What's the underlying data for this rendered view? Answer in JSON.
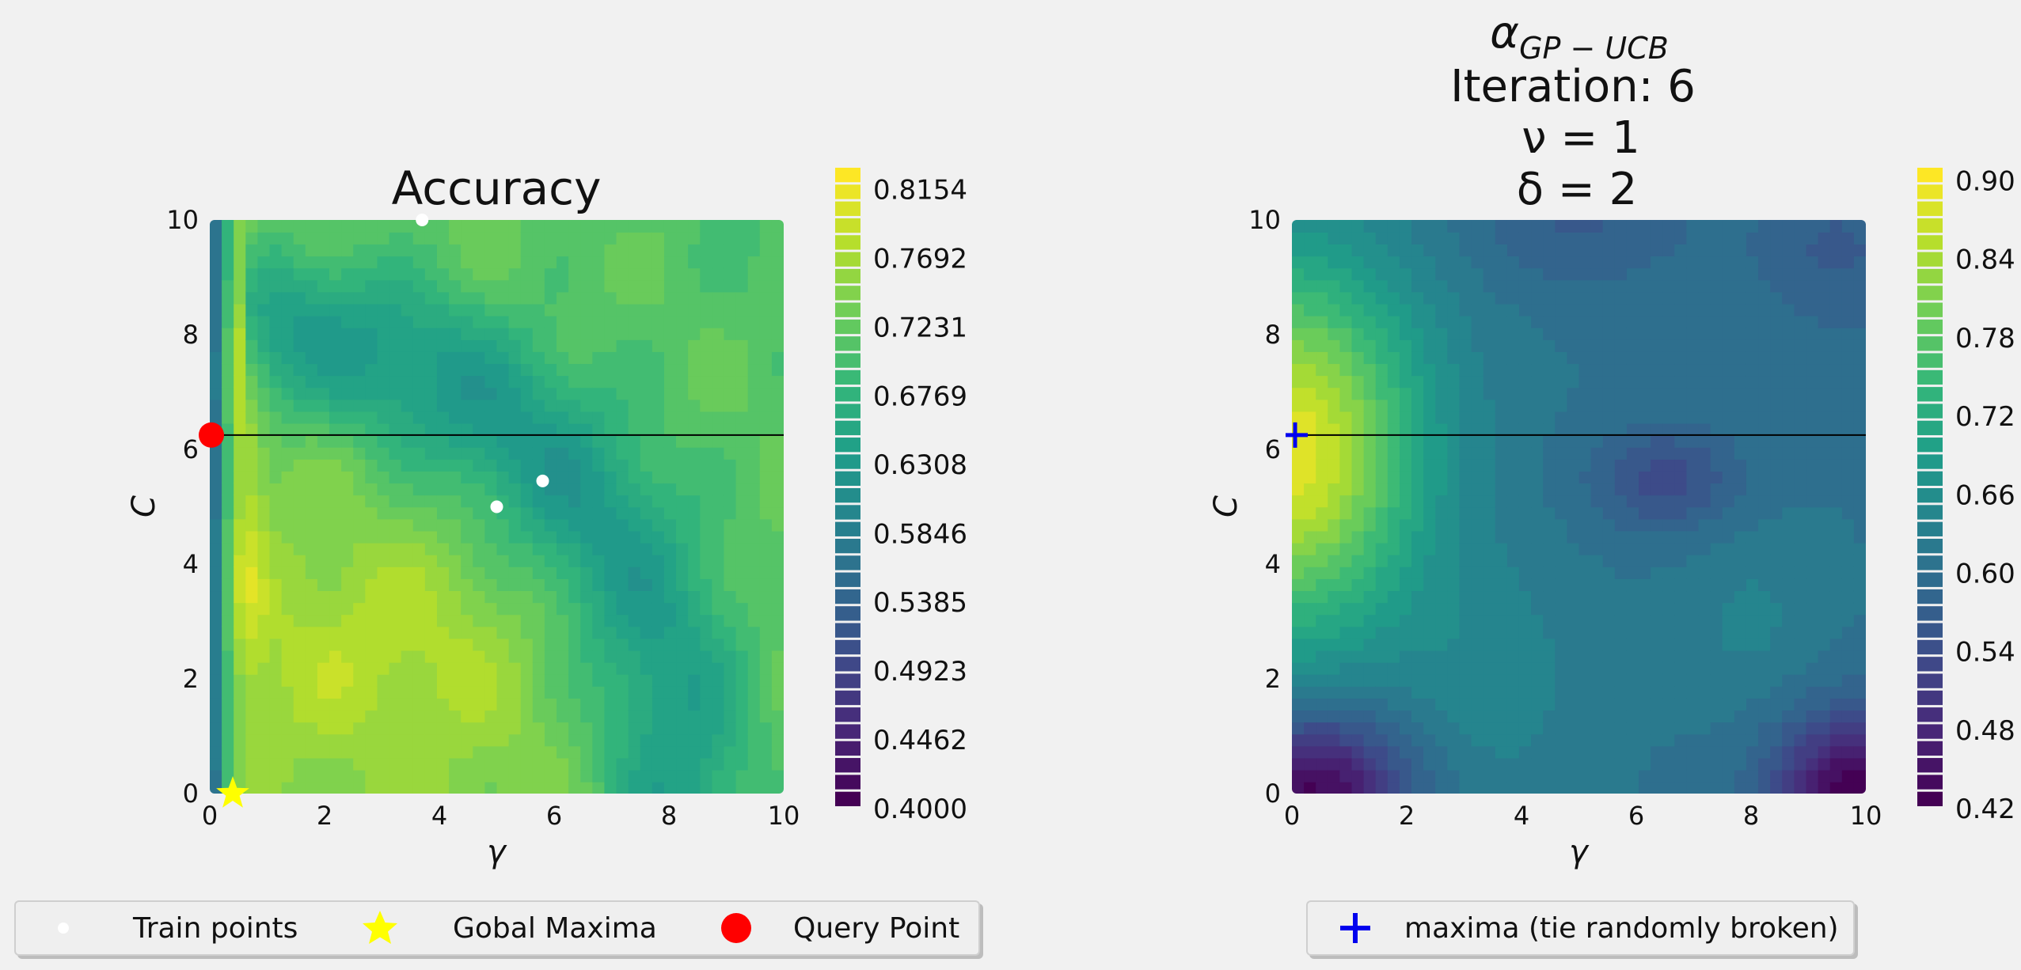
{
  "chart_data": [
    {
      "type": "heatmap",
      "title": "Accuracy",
      "xlabel": "γ",
      "ylabel": "C",
      "xlim": [
        0,
        10
      ],
      "ylim": [
        0,
        10
      ],
      "x_ticks": [
        "0",
        "2",
        "4",
        "6",
        "8",
        "10"
      ],
      "y_ticks": [
        "0",
        "2",
        "4",
        "6",
        "8",
        "10"
      ],
      "colormap": "viridis",
      "colorbar": {
        "min": 0.4,
        "max": 0.83,
        "tick_values": [
          0.4,
          0.4462,
          0.4923,
          0.5385,
          0.5846,
          0.6308,
          0.6769,
          0.7231,
          0.7692,
          0.8154
        ],
        "tick_labels": [
          "0.4000",
          "0.4462",
          "0.4923",
          "0.5385",
          "0.5846",
          "0.6308",
          "0.6769",
          "0.7231",
          "0.7692",
          "0.8154"
        ]
      },
      "train_points": [
        {
          "x": 3.7,
          "y": 10.0
        },
        {
          "x": 5.0,
          "y": 5.0
        },
        {
          "x": 5.8,
          "y": 5.45
        }
      ],
      "global_maxima": {
        "x": 0.4,
        "y": 0.0
      },
      "query_point": {
        "x": 0.0,
        "y": 6.25
      },
      "hline_y": 6.25
    },
    {
      "type": "heatmap",
      "title_lines": [
        "Iteration: 6",
        "ν = 1",
        "δ = 2"
      ],
      "title_alpha": "α",
      "title_alpha_sub": "GP − UCB",
      "xlabel": "γ",
      "ylabel": "C",
      "xlim": [
        0,
        10
      ],
      "ylim": [
        0,
        10
      ],
      "x_ticks": [
        "0",
        "2",
        "4",
        "6",
        "8",
        "10"
      ],
      "y_ticks": [
        "0",
        "2",
        "4",
        "6",
        "8",
        "10"
      ],
      "colormap": "viridis",
      "colorbar": {
        "min": 0.42,
        "max": 0.91,
        "tick_values": [
          0.42,
          0.48,
          0.54,
          0.6,
          0.66,
          0.72,
          0.78,
          0.84,
          0.9
        ],
        "tick_labels": [
          "0.42",
          "0.48",
          "0.54",
          "0.60",
          "0.66",
          "0.72",
          "0.78",
          "0.84",
          "0.90"
        ]
      },
      "maxima": {
        "x": 0.0,
        "y": 6.25
      },
      "hline_y": 6.25
    }
  ],
  "legend_left": {
    "items": [
      {
        "label": "Train points",
        "marker": "dot",
        "color": "#ffffff"
      },
      {
        "label": "Gobal Maxima",
        "marker": "star",
        "color": "#ffff00"
      },
      {
        "label": "Query Point",
        "marker": "circle",
        "color": "#ff0000"
      }
    ]
  },
  "legend_right": {
    "items": [
      {
        "label": "maxima (tie randomly broken)",
        "marker": "plus",
        "color": "#0000ee"
      }
    ]
  }
}
